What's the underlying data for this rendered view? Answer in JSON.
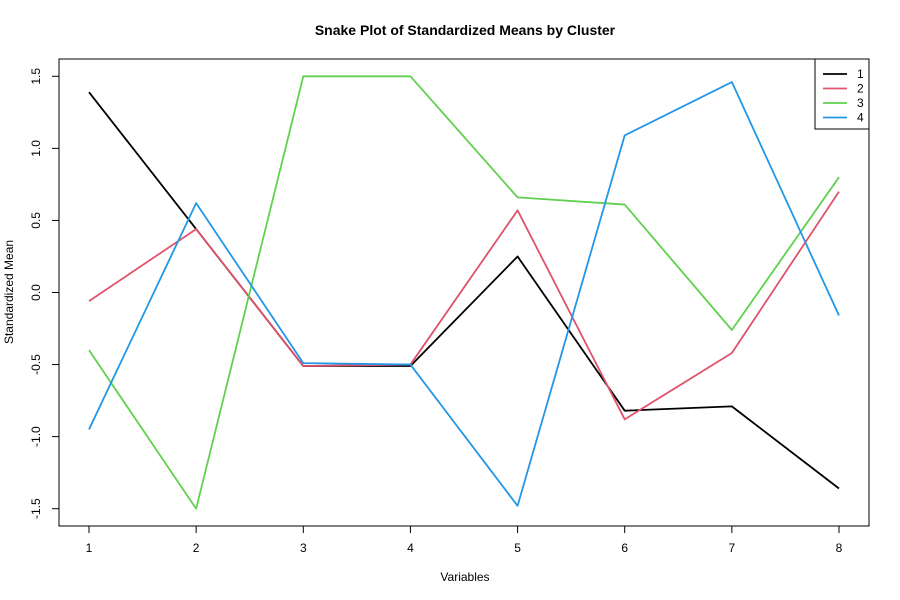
{
  "chart_data": {
    "type": "line",
    "title": "Snake Plot of Standardized Means by Cluster",
    "xlabel": "Variables",
    "ylabel": "Standardized Mean",
    "x": [
      1,
      2,
      3,
      4,
      5,
      6,
      7,
      8
    ],
    "xlim": [
      0.72,
      8.28
    ],
    "ylim": [
      -1.62,
      1.62
    ],
    "x_ticks": [
      "1",
      "2",
      "3",
      "4",
      "5",
      "6",
      "7",
      "8"
    ],
    "y_ticks": [
      "-1.5",
      "-1.0",
      "-0.5",
      "0.0",
      "0.5",
      "1.0",
      "1.5"
    ],
    "y_tick_values": [
      -1.5,
      -1.0,
      -0.5,
      0.0,
      0.5,
      1.0,
      1.5
    ],
    "grid": false,
    "legend_position": "top-right",
    "series": [
      {
        "name": "1",
        "color": "#000000",
        "values": [
          1.39,
          0.44,
          -0.51,
          -0.51,
          0.25,
          -0.82,
          -0.79,
          -1.36
        ]
      },
      {
        "name": "2",
        "color": "#DF536B",
        "values": [
          -0.06,
          0.44,
          -0.51,
          -0.5,
          0.57,
          -0.88,
          -0.42,
          0.7
        ]
      },
      {
        "name": "3",
        "color": "#61D04F",
        "values": [
          -0.4,
          -1.5,
          1.5,
          1.5,
          0.66,
          0.61,
          -0.26,
          0.8
        ]
      },
      {
        "name": "4",
        "color": "#2297E6",
        "values": [
          -0.95,
          0.62,
          -0.49,
          -0.5,
          -1.48,
          1.09,
          1.46,
          -0.16
        ]
      }
    ]
  }
}
